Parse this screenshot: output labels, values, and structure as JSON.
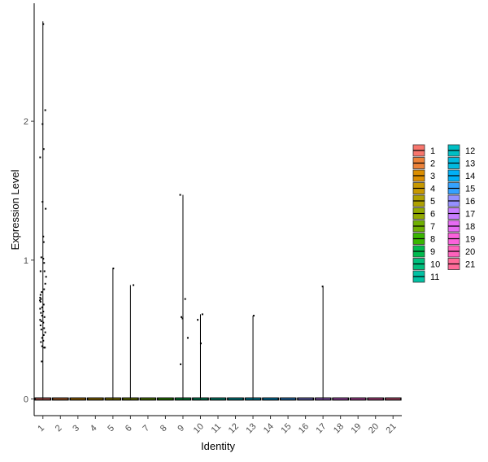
{
  "chart_data": {
    "type": "violin",
    "xlabel": "Identity",
    "ylabel": "Expression Level",
    "categories": [
      "1",
      "2",
      "3",
      "4",
      "5",
      "6",
      "7",
      "8",
      "9",
      "10",
      "11",
      "12",
      "13",
      "14",
      "15",
      "16",
      "17",
      "18",
      "19",
      "20",
      "21"
    ],
    "ylim": [
      -0.12,
      2.85
    ],
    "yticks": [
      0,
      1,
      2
    ],
    "colors": [
      "#F8766D",
      "#EC8239",
      "#DB8E00",
      "#C79800",
      "#AFA100",
      "#93AA00",
      "#6FB000",
      "#39B600",
      "#00BB4E",
      "#00BF7D",
      "#00C1A3",
      "#00BFC4",
      "#00BAE0",
      "#00B0F6",
      "#35A2FF",
      "#9590FF",
      "#C77CFF",
      "#E76BF3",
      "#FA62DB",
      "#FF62BC",
      "#FF6A98"
    ],
    "legend_columns": [
      [
        "1",
        "2",
        "3",
        "4",
        "5",
        "6",
        "7",
        "8",
        "9",
        "10",
        "11"
      ],
      [
        "12",
        "13",
        "14",
        "15",
        "16",
        "17",
        "18",
        "19",
        "20",
        "21"
      ]
    ],
    "legend_position": "right",
    "grid": false,
    "violins": [
      {
        "category": "1",
        "max": 2.72
      },
      {
        "category": "5",
        "max": 0.94
      },
      {
        "category": "6",
        "max": 0.82
      },
      {
        "category": "9",
        "max": 1.47
      },
      {
        "category": "10",
        "max": 0.61
      },
      {
        "category": "13",
        "max": 0.6
      },
      {
        "category": "17",
        "max": 0.81
      }
    ],
    "points": [
      {
        "category": "1",
        "offset": 0.05,
        "y": 2.7
      },
      {
        "category": "1",
        "offset": 0.3,
        "y": 2.08
      },
      {
        "category": "1",
        "offset": -0.05,
        "y": 1.98
      },
      {
        "category": "1",
        "offset": 0.1,
        "y": 1.8
      },
      {
        "category": "1",
        "offset": -0.35,
        "y": 1.74
      },
      {
        "category": "1",
        "offset": -0.05,
        "y": 1.42
      },
      {
        "category": "1",
        "offset": 0.35,
        "y": 1.37
      },
      {
        "category": "1",
        "offset": 0.05,
        "y": 1.17
      },
      {
        "category": "1",
        "offset": 0.1,
        "y": 1.13
      },
      {
        "category": "1",
        "offset": -0.2,
        "y": 1.02
      },
      {
        "category": "1",
        "offset": 0.05,
        "y": 1.01
      },
      {
        "category": "1",
        "offset": 0.15,
        "y": 0.98
      },
      {
        "category": "1",
        "offset": -0.3,
        "y": 0.92
      },
      {
        "category": "1",
        "offset": 0.2,
        "y": 0.92
      },
      {
        "category": "1",
        "offset": 0.4,
        "y": 0.88
      },
      {
        "category": "1",
        "offset": 0.3,
        "y": 0.83
      },
      {
        "category": "1",
        "offset": 0.15,
        "y": 0.79
      },
      {
        "category": "1",
        "offset": -0.15,
        "y": 0.77
      },
      {
        "category": "1",
        "offset": -0.3,
        "y": 0.75
      },
      {
        "category": "1",
        "offset": -0.35,
        "y": 0.73
      },
      {
        "category": "1",
        "offset": -0.25,
        "y": 0.72
      },
      {
        "category": "1",
        "offset": -0.38,
        "y": 0.71
      },
      {
        "category": "1",
        "offset": -0.3,
        "y": 0.7
      },
      {
        "category": "1",
        "offset": 0.1,
        "y": 0.68
      },
      {
        "category": "1",
        "offset": -0.1,
        "y": 0.66
      },
      {
        "category": "1",
        "offset": -0.35,
        "y": 0.65
      },
      {
        "category": "1",
        "offset": 0.05,
        "y": 0.63
      },
      {
        "category": "1",
        "offset": -0.25,
        "y": 0.62
      },
      {
        "category": "1",
        "offset": -0.1,
        "y": 0.6
      },
      {
        "category": "1",
        "offset": 0.2,
        "y": 0.59
      },
      {
        "category": "1",
        "offset": -0.35,
        "y": 0.57
      },
      {
        "category": "1",
        "offset": -0.2,
        "y": 0.56
      },
      {
        "category": "1",
        "offset": 0.05,
        "y": 0.55
      },
      {
        "category": "1",
        "offset": -0.3,
        "y": 0.53
      },
      {
        "category": "1",
        "offset": 0.15,
        "y": 0.51
      },
      {
        "category": "1",
        "offset": -0.2,
        "y": 0.5
      },
      {
        "category": "1",
        "offset": 0.3,
        "y": 0.48
      },
      {
        "category": "1",
        "offset": 0.1,
        "y": 0.46
      },
      {
        "category": "1",
        "offset": -0.1,
        "y": 0.44
      },
      {
        "category": "1",
        "offset": 0.05,
        "y": 0.42
      },
      {
        "category": "1",
        "offset": -0.25,
        "y": 0.41
      },
      {
        "category": "1",
        "offset": -0.1,
        "y": 0.38
      },
      {
        "category": "1",
        "offset": 0.15,
        "y": 0.37
      },
      {
        "category": "1",
        "offset": 0.25,
        "y": 0.37
      },
      {
        "category": "1",
        "offset": -0.15,
        "y": 0.27
      },
      {
        "category": "5",
        "offset": 0.05,
        "y": 0.94
      },
      {
        "category": "6",
        "offset": 0.38,
        "y": 0.82
      },
      {
        "category": "9",
        "offset": -0.35,
        "y": 1.47
      },
      {
        "category": "9",
        "offset": 0.28,
        "y": 0.72
      },
      {
        "category": "9",
        "offset": -0.2,
        "y": 0.59
      },
      {
        "category": "9",
        "offset": -0.05,
        "y": 0.58
      },
      {
        "category": "9",
        "offset": 0.62,
        "y": 0.44
      },
      {
        "category": "9",
        "offset": -0.3,
        "y": 0.25
      },
      {
        "category": "10",
        "offset": 0.25,
        "y": 0.61
      },
      {
        "category": "10",
        "offset": -0.35,
        "y": 0.57
      },
      {
        "category": "10",
        "offset": 0.05,
        "y": 0.4
      },
      {
        "category": "13",
        "offset": 0.1,
        "y": 0.6
      },
      {
        "category": "17",
        "offset": -0.05,
        "y": 0.81
      }
    ]
  }
}
